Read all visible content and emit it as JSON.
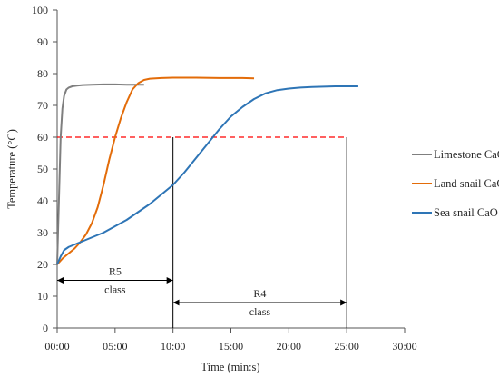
{
  "chart_data": {
    "type": "line",
    "title": "",
    "xlabel": "Time (min:s)",
    "ylabel": "Temperature (°C)",
    "xlim": [
      0,
      30
    ],
    "ylim": [
      0,
      100
    ],
    "x_ticks": [
      0,
      5,
      10,
      15,
      20,
      25,
      30
    ],
    "x_tick_labels": [
      "00:00",
      "05:00",
      "10:00",
      "15:00",
      "20:00",
      "25:00",
      "30:00"
    ],
    "y_ticks": [
      0,
      10,
      20,
      30,
      40,
      50,
      60,
      70,
      80,
      90,
      100
    ],
    "grid": false,
    "legend_position": "right",
    "series": [
      {
        "name": "Limestone CaO",
        "color": "#7f7f7f",
        "x": [
          0,
          0.15,
          0.3,
          0.45,
          0.6,
          0.8,
          1.0,
          1.3,
          1.7,
          2.2,
          3.0,
          4.0,
          5.0,
          6.0,
          7.0,
          7.5
        ],
        "y": [
          20,
          40,
          60,
          69,
          73,
          75,
          75.6,
          76,
          76.2,
          76.4,
          76.5,
          76.6,
          76.6,
          76.5,
          76.5,
          76.5
        ]
      },
      {
        "name": "Land snail CaO",
        "color": "#e36c09",
        "x": [
          0,
          0.5,
          1.0,
          1.5,
          2.0,
          2.5,
          3.0,
          3.5,
          4.0,
          4.5,
          5.0,
          5.5,
          6.0,
          6.5,
          7.0,
          7.5,
          8.0,
          9.0,
          10.0,
          12.0,
          14.0,
          16.0,
          17.0
        ],
        "y": [
          20,
          22,
          23.5,
          25,
          27,
          29.5,
          33,
          38,
          45,
          53,
          60,
          66,
          71,
          75,
          77,
          78,
          78.4,
          78.6,
          78.7,
          78.7,
          78.6,
          78.6,
          78.5
        ]
      },
      {
        "name": "Sea snail CaO",
        "color": "#2e75b6",
        "x": [
          0,
          0.3,
          0.6,
          1.0,
          2.0,
          3.0,
          4.0,
          5.0,
          6.0,
          7.0,
          8.0,
          9.0,
          10.0,
          11.0,
          12.0,
          13.0,
          14.0,
          15.0,
          16.0,
          17.0,
          18.0,
          19.0,
          20.0,
          21.0,
          22.0,
          23.0,
          24.0,
          25.0,
          26.0
        ],
        "y": [
          20,
          22.5,
          24.5,
          25.5,
          27,
          28.5,
          30,
          32,
          34,
          36.5,
          39,
          42,
          45,
          49,
          53.5,
          58,
          62.5,
          66.5,
          69.5,
          72,
          73.8,
          74.8,
          75.3,
          75.6,
          75.8,
          75.9,
          76,
          76,
          76
        ]
      }
    ],
    "reference_line": {
      "y": 60,
      "x_from": 0,
      "x_to": 25,
      "color": "#ff0000",
      "style": "dashed"
    },
    "annotations": {
      "r5": {
        "label": "R5",
        "sub": "class",
        "x_from": 0,
        "x_to": 10,
        "y": 15
      },
      "r4": {
        "label": "R4",
        "sub": "class",
        "x_from": 10,
        "x_to": 25,
        "y": 8
      }
    }
  }
}
